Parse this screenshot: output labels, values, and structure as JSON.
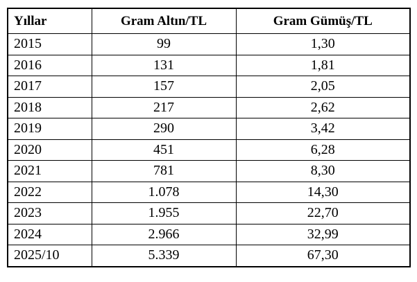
{
  "table": {
    "columns": [
      {
        "key": "year",
        "label": "Yıllar"
      },
      {
        "key": "gold",
        "label": "Gram Altın/TL"
      },
      {
        "key": "silver",
        "label": "Gram Gümüş/TL"
      }
    ],
    "rows": [
      {
        "year": "2015",
        "gold": "99",
        "silver": "1,30"
      },
      {
        "year": "2016",
        "gold": "131",
        "silver": "1,81"
      },
      {
        "year": "2017",
        "gold": "157",
        "silver": "2,05"
      },
      {
        "year": "2018",
        "gold": "217",
        "silver": "2,62"
      },
      {
        "year": "2019",
        "gold": "290",
        "silver": "3,42"
      },
      {
        "year": "2020",
        "gold": "451",
        "silver": "6,28"
      },
      {
        "year": "2021",
        "gold": "781",
        "silver": "8,30"
      },
      {
        "year": "2022",
        "gold": "1.078",
        "silver": "14,30"
      },
      {
        "year": "2023",
        "gold": "1.955",
        "silver": "22,70"
      },
      {
        "year": "2024",
        "gold": "2.966",
        "silver": "32,99"
      },
      {
        "year": "2025/10",
        "gold": "5.339",
        "silver": "67,30"
      }
    ],
    "colors": {
      "border": "#000000",
      "background": "#ffffff",
      "text": "#000000"
    }
  },
  "chart_data": {
    "type": "table",
    "title": "",
    "columns": [
      "Yıllar",
      "Gram Altın/TL",
      "Gram Gümüş/TL"
    ],
    "rows": [
      [
        "2015",
        "99",
        "1,30"
      ],
      [
        "2016",
        "131",
        "1,81"
      ],
      [
        "2017",
        "157",
        "2,05"
      ],
      [
        "2018",
        "217",
        "2,62"
      ],
      [
        "2019",
        "290",
        "3,42"
      ],
      [
        "2020",
        "451",
        "6,28"
      ],
      [
        "2021",
        "781",
        "8,30"
      ],
      [
        "2022",
        "1.078",
        "14,30"
      ],
      [
        "2023",
        "1.955",
        "22,70"
      ],
      [
        "2024",
        "2.966",
        "32,99"
      ],
      [
        "2025/10",
        "5.339",
        "67,30"
      ]
    ],
    "series": [
      {
        "name": "Gram Altın/TL",
        "values": [
          99,
          131,
          157,
          217,
          290,
          451,
          781,
          1078,
          1955,
          2966,
          5339
        ]
      },
      {
        "name": "Gram Gümüş/TL",
        "values": [
          1.3,
          1.81,
          2.05,
          2.62,
          3.42,
          6.28,
          8.3,
          14.3,
          22.7,
          32.99,
          67.3
        ]
      }
    ],
    "categories": [
      "2015",
      "2016",
      "2017",
      "2018",
      "2019",
      "2020",
      "2021",
      "2022",
      "2023",
      "2024",
      "2025/10"
    ]
  }
}
